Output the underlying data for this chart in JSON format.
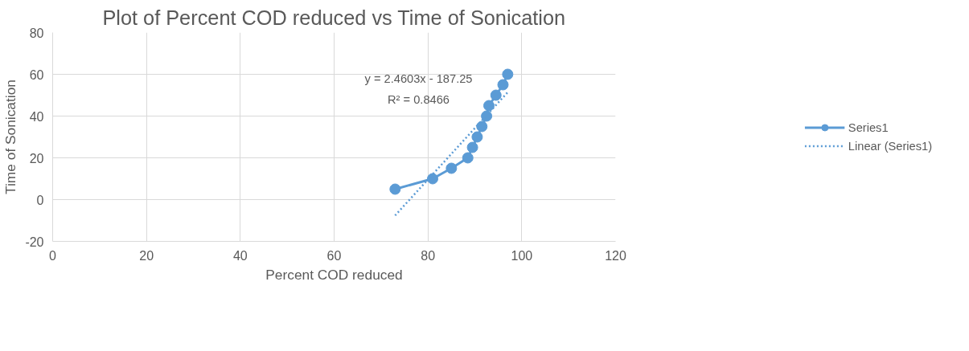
{
  "chart_data": {
    "type": "line",
    "title": "Plot of Percent COD reduced vs Time of Sonication",
    "xlabel": "Percent COD reduced",
    "ylabel": "Time of Sonication",
    "x": [
      73,
      81,
      85,
      88.5,
      89.5,
      90.5,
      91.5,
      92.5,
      93,
      94.5,
      96,
      97
    ],
    "series": [
      {
        "name": "Series1",
        "color": "#5b9bd5",
        "values": [
          5,
          10,
          15,
          20,
          25,
          30,
          35,
          40,
          45,
          50,
          55,
          60
        ],
        "marker": "circle",
        "line_style": "solid"
      },
      {
        "name": "Linear (Series1)",
        "type": "line",
        "color": "#5b9bd5",
        "x": [
          73,
          97
        ],
        "values": [
          -7.6,
          51.4
        ],
        "marker": "none",
        "line_style": "dotted"
      }
    ],
    "annotations": [
      "y = 2.4603x - 187.25",
      "R² = 0.8466"
    ],
    "xlim": [
      0,
      120
    ],
    "xticks": [
      0,
      20,
      40,
      60,
      80,
      100,
      120
    ],
    "ylim": [
      -20,
      80
    ],
    "yticks": [
      -20,
      0,
      20,
      40,
      60,
      80
    ],
    "grid": true,
    "legend": "right"
  }
}
